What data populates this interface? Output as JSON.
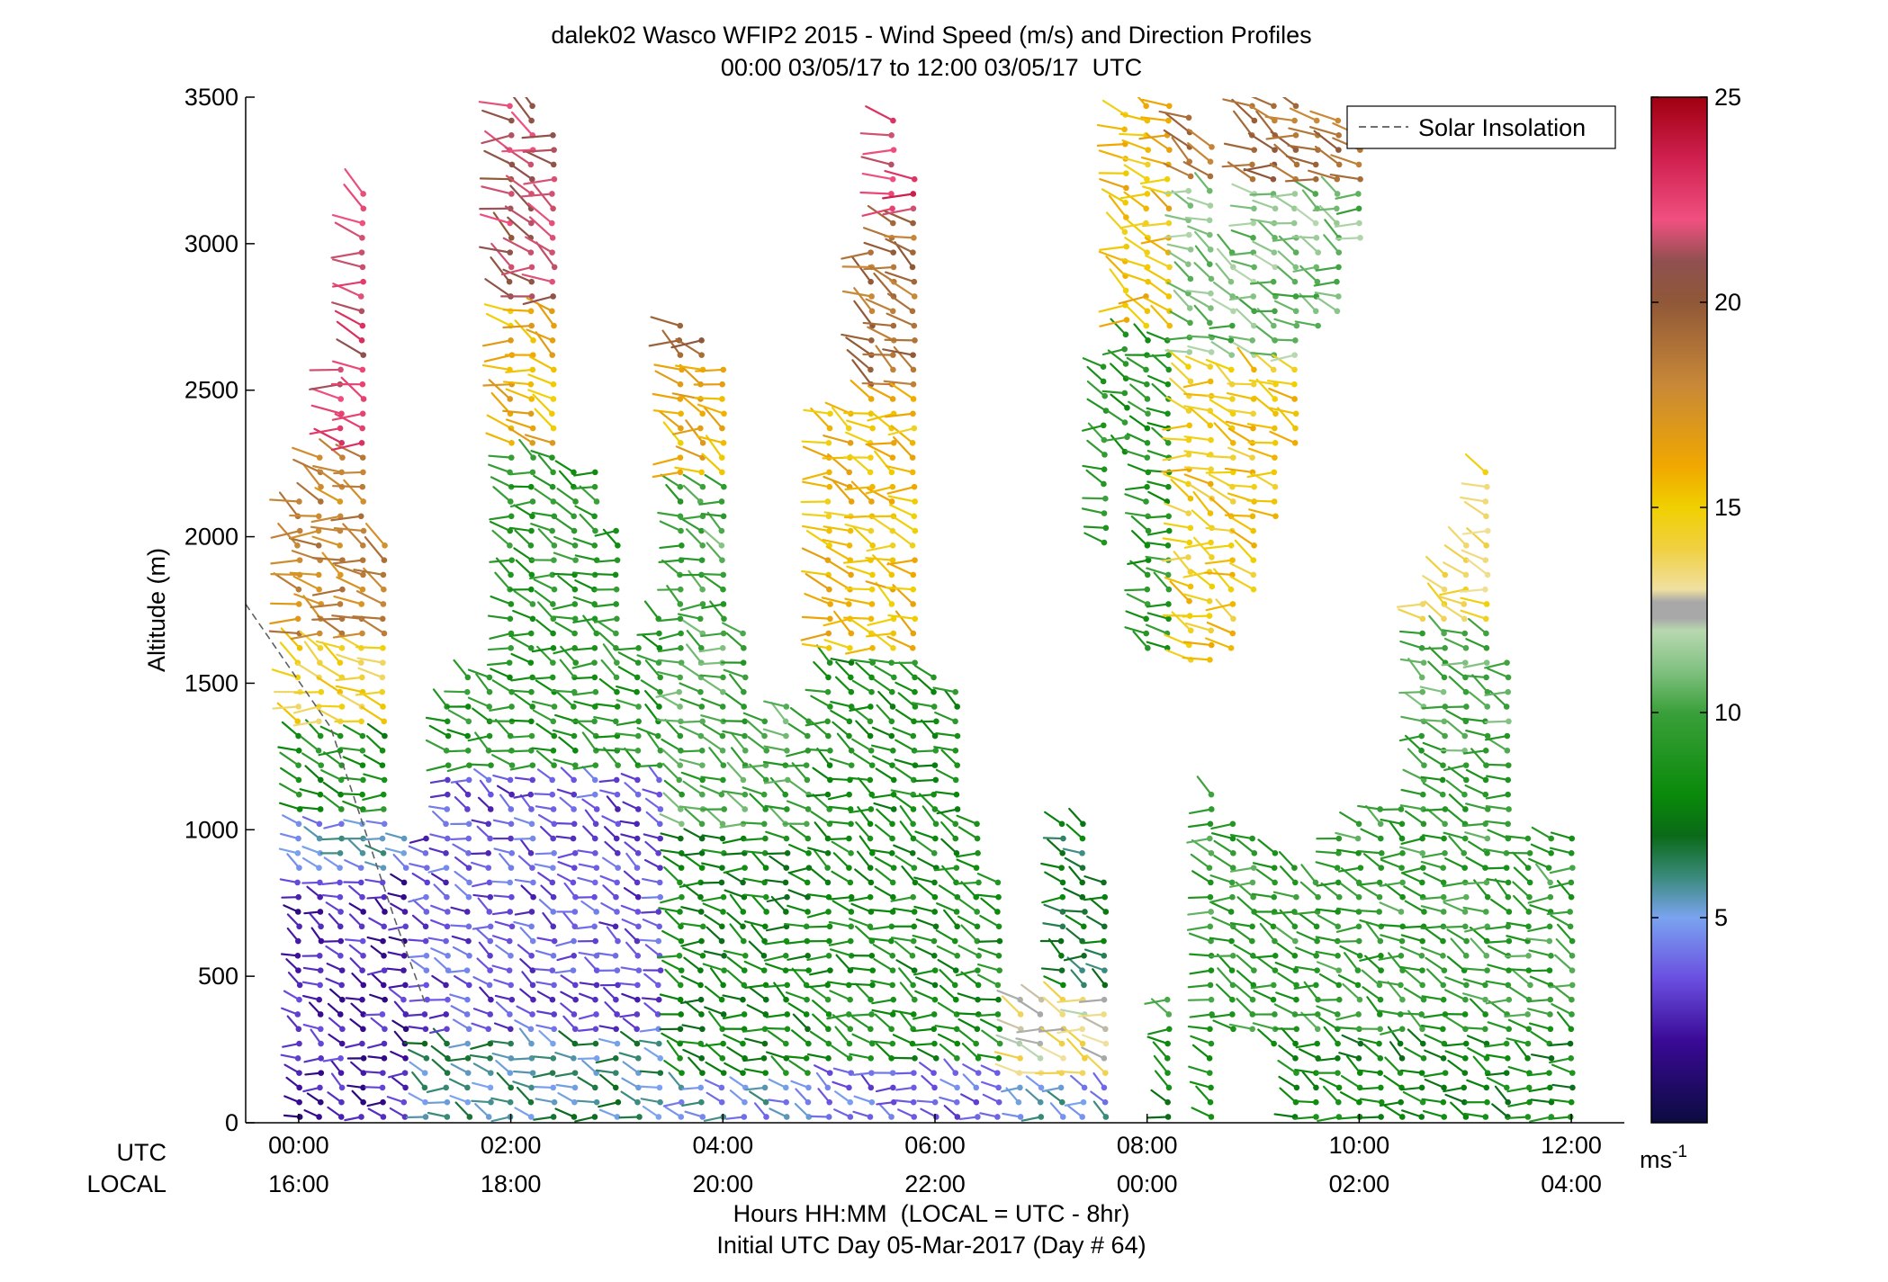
{
  "chart_data": {
    "type": "scatter",
    "title": "dalek02 Wasco WFIP2 2015 - Wind Speed (m/s) and Direction Profiles",
    "subtitle": "00:00 03/05/17 to 12:00 03/05/17  UTC",
    "ylabel": "Altitude (m)",
    "xlabel": "Hours HH:MM  (LOCAL = UTC - 8hr)",
    "xlabel2": "Initial UTC Day 05-Mar-2017 (Day # 64)",
    "row_label_utc": "UTC",
    "row_label_local": "LOCAL",
    "xlim_hours": [
      -0.5,
      12.5
    ],
    "ylim": [
      0,
      3500
    ],
    "xticks": [
      {
        "hour": 0,
        "utc": "00:00",
        "local": "16:00"
      },
      {
        "hour": 2,
        "utc": "02:00",
        "local": "18:00"
      },
      {
        "hour": 4,
        "utc": "04:00",
        "local": "20:00"
      },
      {
        "hour": 6,
        "utc": "06:00",
        "local": "22:00"
      },
      {
        "hour": 8,
        "utc": "08:00",
        "local": "00:00"
      },
      {
        "hour": 10,
        "utc": "10:00",
        "local": "02:00"
      },
      {
        "hour": 12,
        "utc": "12:00",
        "local": "04:00"
      }
    ],
    "yticks": [
      0,
      500,
      1000,
      1500,
      2000,
      2500,
      3000,
      3500
    ],
    "legend": {
      "label": "Solar Insolation",
      "position": "top-right"
    },
    "solar_insolation": {
      "x_hours": [
        -0.5,
        0.3,
        0.9,
        1.2
      ],
      "y": [
        1770,
        1350,
        700,
        400
      ]
    },
    "colorbar": {
      "min": 0,
      "max": 25,
      "ticks": [
        5,
        10,
        15,
        20,
        25
      ],
      "unit": "ms",
      "unit_exp": "-1",
      "stops": [
        {
          "v": 0,
          "c": "#0b0b40"
        },
        {
          "v": 2,
          "c": "#3a0a96"
        },
        {
          "v": 3.5,
          "c": "#6a4ee0"
        },
        {
          "v": 5,
          "c": "#7aa3f0"
        },
        {
          "v": 6,
          "c": "#3a8a7a"
        },
        {
          "v": 7,
          "c": "#0a6a18"
        },
        {
          "v": 8,
          "c": "#0a8a0a"
        },
        {
          "v": 10,
          "c": "#3aa03a"
        },
        {
          "v": 11,
          "c": "#80c080"
        },
        {
          "v": 12,
          "c": "#b8d8b0"
        },
        {
          "v": 12.3,
          "c": "#a8a8a8"
        },
        {
          "v": 12.7,
          "c": "#a8a8a8"
        },
        {
          "v": 13,
          "c": "#f0e0a0"
        },
        {
          "v": 14,
          "c": "#f0d040"
        },
        {
          "v": 15,
          "c": "#f0d000"
        },
        {
          "v": 16,
          "c": "#f0a800"
        },
        {
          "v": 18,
          "c": "#c88838"
        },
        {
          "v": 20,
          "c": "#905838"
        },
        {
          "v": 21,
          "c": "#905050"
        },
        {
          "v": 22,
          "c": "#f05080"
        },
        {
          "v": 23.5,
          "c": "#d02050"
        },
        {
          "v": 25,
          "c": "#a00010"
        }
      ]
    },
    "profiles": [
      {
        "t": 0.0,
        "z0": 0,
        "z1": 2120
      },
      {
        "t": 0.2,
        "z0": 0,
        "z1": 2270
      },
      {
        "t": 0.4,
        "z0": 0,
        "z1": 2600
      },
      {
        "t": 0.6,
        "z0": 0,
        "z1": 3180
      },
      {
        "t": 0.8,
        "z0": 0,
        "z1": 2000
      },
      {
        "t": 1.0,
        "z0": 0,
        "z1": 980
      },
      {
        "t": 1.2,
        "z0": 0,
        "z1": 980
      },
      {
        "t": 1.4,
        "z0": 0,
        "z1": 1440
      },
      {
        "t": 1.6,
        "z0": 0,
        "z1": 1560
      },
      {
        "t": 1.8,
        "z0": 0,
        "z1": 1560
      },
      {
        "t": 2.0,
        "z0": 0,
        "z1": 3490
      },
      {
        "t": 2.2,
        "z0": 0,
        "z1": 3490
      },
      {
        "t": 2.4,
        "z0": 0,
        "z1": 3380
      },
      {
        "t": 2.6,
        "z0": 0,
        "z1": 2260
      },
      {
        "t": 2.8,
        "z0": 0,
        "z1": 2260
      },
      {
        "t": 3.0,
        "z0": 0,
        "z1": 2040
      },
      {
        "t": 3.2,
        "z0": 0,
        "z1": 1650
      },
      {
        "t": 3.4,
        "z0": 0,
        "z1": 1760
      },
      {
        "t": 3.6,
        "z0": 0,
        "z1": 2730
      },
      {
        "t": 3.8,
        "z0": 0,
        "z1": 2680
      },
      {
        "t": 4.0,
        "z0": 0,
        "z1": 2600
      },
      {
        "t": 4.2,
        "z0": 0,
        "z1": 1700
      },
      {
        "t": 4.4,
        "z0": 0,
        "z1": 1400
      },
      {
        "t": 4.6,
        "z0": 0,
        "z1": 1420
      },
      {
        "t": 4.8,
        "z0": 0,
        "z1": 1410
      },
      {
        "t": 5.0,
        "z0": 0,
        "z1": 2450
      },
      {
        "t": 5.2,
        "z0": 0,
        "z1": 2450
      },
      {
        "t": 5.4,
        "z0": 0,
        "z1": 3000
      },
      {
        "t": 5.6,
        "z0": 0,
        "z1": 3460
      },
      {
        "t": 5.8,
        "z0": 0,
        "z1": 3250
      },
      {
        "t": 6.0,
        "z0": 0,
        "z1": 1560
      },
      {
        "t": 6.2,
        "z0": 0,
        "z1": 1480
      },
      {
        "t": 6.4,
        "z0": 0,
        "z1": 1030
      },
      {
        "t": 6.6,
        "z0": 0,
        "z1": 840
      },
      {
        "t": 6.8,
        "z0": 0,
        "z1": 440
      },
      {
        "t": 7.0,
        "z0": 0,
        "z1": 450
      },
      {
        "t": 7.2,
        "z0": 0,
        "z1": 1050
      },
      {
        "t": 7.4,
        "z0": 0,
        "z1": 1050
      },
      {
        "t": 7.6,
        "z0": 0,
        "z1": 820
      },
      {
        "t": 7.6,
        "z0": 1960,
        "z1": 2590
      },
      {
        "t": 7.8,
        "z0": 2270,
        "z1": 3480
      },
      {
        "t": 8.0,
        "z0": 1600,
        "z1": 3480
      },
      {
        "t": 8.2,
        "z0": 1600,
        "z1": 3480
      },
      {
        "t": 8.4,
        "z0": 1560,
        "z1": 3430
      },
      {
        "t": 8.6,
        "z0": 1560,
        "z1": 3330
      },
      {
        "t": 8.8,
        "z0": 1600,
        "z1": 3000
      },
      {
        "t": 9.0,
        "z0": 1800,
        "z1": 3480
      },
      {
        "t": 9.2,
        "z0": 2050,
        "z1": 3480
      },
      {
        "t": 9.4,
        "z0": 2300,
        "z1": 3480
      },
      {
        "t": 9.6,
        "z0": 2700,
        "z1": 3450
      },
      {
        "t": 9.8,
        "z0": 2750,
        "z1": 3450
      },
      {
        "t": 10.0,
        "z0": 3000,
        "z1": 3400
      },
      {
        "t": 8.2,
        "z0": 0,
        "z1": 420
      },
      {
        "t": 8.6,
        "z0": 0,
        "z1": 1150
      },
      {
        "t": 8.8,
        "z0": 300,
        "z1": 1040
      },
      {
        "t": 9.0,
        "z0": 300,
        "z1": 1000
      },
      {
        "t": 9.2,
        "z0": 250,
        "z1": 950
      },
      {
        "t": 9.4,
        "z0": 0,
        "z1": 900
      },
      {
        "t": 9.6,
        "z0": 0,
        "z1": 850
      },
      {
        "t": 9.8,
        "z0": 0,
        "z1": 1000
      },
      {
        "t": 10.0,
        "z0": 0,
        "z1": 1060
      },
      {
        "t": 10.2,
        "z0": 0,
        "z1": 1100
      },
      {
        "t": 10.4,
        "z0": 0,
        "z1": 1100
      },
      {
        "t": 10.6,
        "z0": 0,
        "z1": 1800
      },
      {
        "t": 10.8,
        "z0": 0,
        "z1": 1900
      },
      {
        "t": 11.0,
        "z0": 0,
        "z1": 2000
      },
      {
        "t": 11.2,
        "z0": 0,
        "z1": 2250
      },
      {
        "t": 11.4,
        "z0": 0,
        "z1": 1600
      },
      {
        "t": 11.6,
        "z0": 0,
        "z1": 1000
      },
      {
        "t": 11.8,
        "z0": 0,
        "z1": 1000
      },
      {
        "t": 12.0,
        "z0": 0,
        "z1": 1000
      }
    ],
    "speed_field": [
      {
        "t0": -0.3,
        "t1": 1.2,
        "z0": 0,
        "z1": 850,
        "v": 2.5
      },
      {
        "t0": -0.3,
        "t1": 1.2,
        "z0": 850,
        "z1": 1050,
        "v": 5
      },
      {
        "t0": -0.3,
        "t1": 1.2,
        "z0": 1050,
        "z1": 1350,
        "v": 8.5
      },
      {
        "t0": -0.3,
        "t1": 1.2,
        "z0": 1350,
        "z1": 1650,
        "v": 14.5
      },
      {
        "t0": -0.3,
        "t1": 1.2,
        "z0": 1650,
        "z1": 2300,
        "v": 18
      },
      {
        "t0": -0.3,
        "t1": 1.2,
        "z0": 2300,
        "z1": 3600,
        "v": 22
      },
      {
        "t0": 1.2,
        "t1": 3.5,
        "z0": 0,
        "z1": 300,
        "v": 6
      },
      {
        "t0": 1.2,
        "t1": 3.5,
        "z0": 300,
        "z1": 1200,
        "v": 3.5
      },
      {
        "t0": 1.2,
        "t1": 3.5,
        "z0": 1200,
        "z1": 2300,
        "v": 9
      },
      {
        "t0": 1.2,
        "t1": 3.5,
        "z0": 2300,
        "z1": 2800,
        "v": 16
      },
      {
        "t0": 1.2,
        "t1": 3.5,
        "z0": 2800,
        "z1": 3600,
        "v": 21
      },
      {
        "t0": 3.5,
        "t1": 5.0,
        "z0": 0,
        "z1": 150,
        "v": 5
      },
      {
        "t0": 3.5,
        "t1": 5.0,
        "z0": 150,
        "z1": 1000,
        "v": 8
      },
      {
        "t0": 3.5,
        "t1": 5.0,
        "z0": 1000,
        "z1": 2200,
        "v": 10
      },
      {
        "t0": 3.5,
        "t1": 5.0,
        "z0": 2200,
        "z1": 2600,
        "v": 16
      },
      {
        "t0": 3.5,
        "t1": 5.0,
        "z0": 2600,
        "z1": 3600,
        "v": 20
      },
      {
        "t0": 5.0,
        "t1": 6.7,
        "z0": 0,
        "z1": 200,
        "v": 4
      },
      {
        "t0": 5.0,
        "t1": 6.7,
        "z0": 200,
        "z1": 1600,
        "v": 8.5
      },
      {
        "t0": 5.0,
        "t1": 6.7,
        "z0": 1600,
        "z1": 2500,
        "v": 15.5
      },
      {
        "t0": 5.0,
        "t1": 6.7,
        "z0": 2500,
        "z1": 3100,
        "v": 19
      },
      {
        "t0": 5.0,
        "t1": 6.7,
        "z0": 3100,
        "z1": 3600,
        "v": 22.5
      },
      {
        "t0": 6.7,
        "t1": 8.0,
        "z0": 0,
        "z1": 150,
        "v": 5
      },
      {
        "t0": 6.7,
        "t1": 8.0,
        "z0": 150,
        "z1": 450,
        "v": 13
      },
      {
        "t0": 6.7,
        "t1": 8.0,
        "z0": 450,
        "z1": 1100,
        "v": 7
      },
      {
        "t0": 7.5,
        "t1": 8.3,
        "z0": 1900,
        "z1": 2700,
        "v": 9
      },
      {
        "t0": 7.5,
        "t1": 8.3,
        "z0": 2700,
        "z1": 3600,
        "v": 15.5
      },
      {
        "t0": 8.3,
        "t1": 10.4,
        "z0": 1500,
        "z1": 2600,
        "v": 15
      },
      {
        "t0": 8.3,
        "t1": 10.4,
        "z0": 2600,
        "z1": 3200,
        "v": 11
      },
      {
        "t0": 8.3,
        "t1": 10.4,
        "z0": 3200,
        "z1": 3600,
        "v": 19
      },
      {
        "t0": 8.0,
        "t1": 12.5,
        "z0": 0,
        "z1": 300,
        "v": 8
      },
      {
        "t0": 8.0,
        "t1": 12.5,
        "z0": 300,
        "z1": 1200,
        "v": 9.5
      },
      {
        "t0": 10.4,
        "t1": 12.5,
        "z0": 1200,
        "z1": 1700,
        "v": 10
      },
      {
        "t0": 10.4,
        "t1": 12.5,
        "z0": 1700,
        "z1": 2300,
        "v": 14
      }
    ]
  }
}
